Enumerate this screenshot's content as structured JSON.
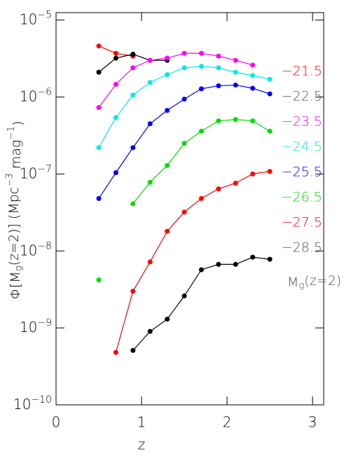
{
  "chart_data": {
    "type": "line",
    "log_y": true,
    "xlabel": "z",
    "ylabel": "Φ[M_g(z=2)]  (Mpc^-3 mag^-1)",
    "annotation": "M_g(z=2)",
    "x": [
      0.5,
      0.7,
      0.9,
      1.1,
      1.3,
      1.5,
      1.7,
      1.9,
      2.1,
      2.3,
      2.5
    ],
    "xlim": [
      0,
      3.13
    ],
    "xticks": [
      0,
      1,
      2,
      3
    ],
    "ylim": [
      1e-10,
      1.25e-05
    ],
    "yticks": [
      {
        "value": 1e-10,
        "label": "10^-10"
      },
      {
        "value": 1e-09,
        "label": "10^-9"
      },
      {
        "value": 1e-08,
        "label": "10^-8"
      },
      {
        "value": 1e-07,
        "label": "10^-7"
      },
      {
        "value": 1e-06,
        "label": "10^-6"
      },
      {
        "value": 1e-05,
        "label": "10^-5"
      }
    ],
    "series": [
      {
        "name": "−21.5",
        "color": "#ff0000",
        "values": [
          4.6e-06,
          3.7e-06,
          3.4e-06,
          null,
          null,
          null,
          null,
          null,
          null,
          null,
          null
        ]
      },
      {
        "name": "−22.5",
        "color": "#000000",
        "values": [
          2.1e-06,
          3.2e-06,
          3.6e-06,
          3e-06,
          3e-06,
          null,
          null,
          null,
          null,
          null,
          null
        ]
      },
      {
        "name": "−23.5",
        "color": "#ff00ff",
        "values": [
          7.3e-07,
          1.46e-06,
          2.4e-06,
          3e-06,
          3.2e-06,
          3.7e-06,
          3.7e-06,
          3.4e-06,
          3e-06,
          2.6e-06,
          null
        ]
      },
      {
        "name": "−24.5",
        "color": "#00e8e8",
        "values": [
          2.2e-07,
          5.4e-07,
          1.06e-06,
          1.55e-06,
          1.95e-06,
          2.4e-06,
          2.5e-06,
          2.4e-06,
          2.1e-06,
          1.9e-06,
          1.7e-06
        ]
      },
      {
        "name": "−25.5",
        "color": "#0000ff",
        "values": [
          4.8e-08,
          1.04e-07,
          2.2e-07,
          4.5e-07,
          6.7e-07,
          9.4e-07,
          1.28e-06,
          1.4e-06,
          1.43e-06,
          1.3e-06,
          1.1e-06
        ]
      },
      {
        "name": "−26.5",
        "color": "#00dd00",
        "values": [
          4.2e-09,
          null,
          4.1e-08,
          7.8e-08,
          1.29e-07,
          2.5e-07,
          3.6e-07,
          4.9e-07,
          5.1e-07,
          4.9e-07,
          3.6e-07
        ]
      },
      {
        "name": "−27.5",
        "color": "#ff0000",
        "values": [
          null,
          4.8e-10,
          3e-09,
          7.2e-09,
          1.8e-08,
          3.2e-08,
          4.8e-08,
          6.4e-08,
          7.6e-08,
          1e-07,
          1.08e-07
        ]
      },
      {
        "name": "−28.5",
        "color": "#000000",
        "values": [
          null,
          null,
          5.1e-10,
          9e-10,
          1.3e-09,
          2.6e-09,
          5.7e-09,
          6.7e-09,
          6.7e-09,
          8.3e-09,
          7.8e-09
        ]
      }
    ]
  }
}
